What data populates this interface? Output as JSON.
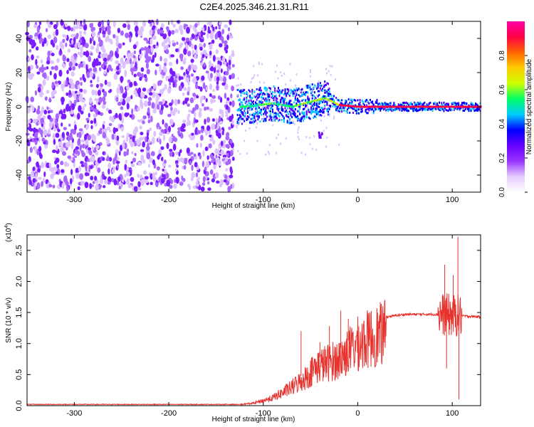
{
  "title": "C2E4.2025.346.21.31.R11",
  "chart_data": [
    {
      "type": "heatmap",
      "name": "spectrogram",
      "xlabel": "Height of straight line (km)",
      "ylabel": "Frequency (Hz)",
      "xlim": [
        -350,
        130
      ],
      "ylim": [
        -50,
        50
      ],
      "x_ticks": [
        -300,
        -200,
        -100,
        0,
        100
      ],
      "x_tick_labels": [
        "-300",
        "-200",
        "-100",
        "0",
        "100"
      ],
      "y_ticks": [
        -40,
        -20,
        0,
        20,
        40
      ],
      "y_tick_labels": [
        "-40",
        "-20",
        "0",
        "20",
        "40"
      ],
      "colorbar": {
        "label": "Normalized spectral amplitude",
        "range": [
          0.0,
          1.0
        ],
        "ticks": [
          0.0,
          0.2,
          0.4,
          0.6,
          0.8
        ],
        "tick_labels": [
          "0.0",
          "0.2",
          "0.4",
          "0.6",
          "0.8"
        ],
        "colormap": [
          "#ffffff",
          "#e6ccff",
          "#9933ff",
          "#6600ff",
          "#0000ff",
          "#00ccff",
          "#00ff66",
          "#ccff00",
          "#ffcc00",
          "#ff6600",
          "#ff0044",
          "#ff00aa"
        ]
      },
      "regions": [
        {
          "desc": "noise",
          "x": [
            -350,
            -130
          ],
          "freq": [
            -50,
            50
          ],
          "amplitude": 0.15
        },
        {
          "desc": "signal onset",
          "x": [
            -130,
            -30
          ],
          "freq": [
            -8,
            8
          ],
          "amplitude": 0.4
        },
        {
          "desc": "tone",
          "x": [
            -30,
            130
          ],
          "freq": [
            0,
            0
          ],
          "amplitude": 0.95
        },
        {
          "desc": "spur",
          "x": [
            -42,
            -38
          ],
          "freq": [
            -18,
            -14
          ],
          "amplitude": 0.3
        }
      ],
      "tone_center_freq": [
        {
          "x": -120,
          "f": 0
        },
        {
          "x": -90,
          "f": 2
        },
        {
          "x": -70,
          "f": 0
        },
        {
          "x": -50,
          "f": 3
        },
        {
          "x": -35,
          "f": 5
        },
        {
          "x": -20,
          "f": 1
        },
        {
          "x": 0,
          "f": 0
        },
        {
          "x": 130,
          "f": 0
        }
      ]
    },
    {
      "type": "line",
      "name": "snr",
      "xlabel": "Height of straight line (km)",
      "ylabel": "SNR (10 * v/v)",
      "scale_label_base": "(x10",
      "scale_label_exp": "4",
      "scale_label_close": ")",
      "xlim": [
        -350,
        130
      ],
      "ylim": [
        0.0,
        2.75
      ],
      "x_ticks": [
        -300,
        -200,
        -100,
        0,
        100
      ],
      "x_tick_labels": [
        "-300",
        "-200",
        "-100",
        "0",
        "100"
      ],
      "y_ticks": [
        0.0,
        0.5,
        1.0,
        1.5,
        2.0,
        2.5
      ],
      "y_tick_labels": [
        "0.0",
        "0.5",
        "1.0",
        "1.5",
        "2.0",
        "2.5"
      ],
      "series": [
        {
          "name": "SNR",
          "color": "#e8322e",
          "envelope": [
            {
              "x": -350,
              "y": 0.02
            },
            {
              "x": -200,
              "y": 0.02
            },
            {
              "x": -125,
              "y": 0.02
            },
            {
              "x": -110,
              "y": 0.05
            },
            {
              "x": -90,
              "y": 0.15
            },
            {
              "x": -70,
              "y": 0.35
            },
            {
              "x": -55,
              "y": 0.55
            },
            {
              "x": -45,
              "y": 0.75
            },
            {
              "x": -30,
              "y": 0.85
            },
            {
              "x": -20,
              "y": 0.9
            },
            {
              "x": -10,
              "y": 1.05
            },
            {
              "x": 0,
              "y": 1.2
            },
            {
              "x": 15,
              "y": 1.33
            },
            {
              "x": 30,
              "y": 1.43
            },
            {
              "x": 50,
              "y": 1.47
            },
            {
              "x": 90,
              "y": 1.47
            },
            {
              "x": 100,
              "y": 1.45
            },
            {
              "x": 130,
              "y": 1.43
            }
          ],
          "spikes": [
            {
              "x": -60,
              "y": 1.2
            },
            {
              "x": -40,
              "y": 1.02
            },
            {
              "x": -30,
              "y": 1.28
            },
            {
              "x": -18,
              "y": 1.53
            },
            {
              "x": -10,
              "y": 1.4
            },
            {
              "x": 92,
              "y": 2.27
            },
            {
              "x": 94,
              "y": 0.6
            },
            {
              "x": 101,
              "y": 2.1
            },
            {
              "x": 106,
              "y": 2.72
            },
            {
              "x": 107,
              "y": 0.1
            }
          ]
        }
      ]
    }
  ]
}
